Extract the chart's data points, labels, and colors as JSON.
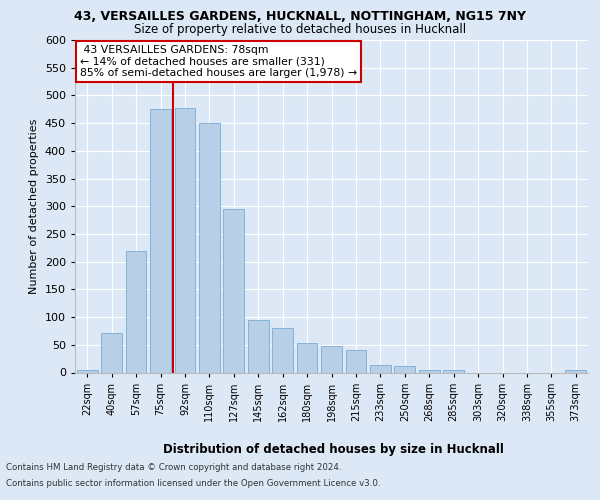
{
  "title1": "43, VERSAILLES GARDENS, HUCKNALL, NOTTINGHAM, NG15 7NY",
  "title2": "Size of property relative to detached houses in Hucknall",
  "xlabel": "Distribution of detached houses by size in Hucknall",
  "ylabel": "Number of detached properties",
  "categories": [
    "22sqm",
    "40sqm",
    "57sqm",
    "75sqm",
    "92sqm",
    "110sqm",
    "127sqm",
    "145sqm",
    "162sqm",
    "180sqm",
    "198sqm",
    "215sqm",
    "233sqm",
    "250sqm",
    "268sqm",
    "285sqm",
    "303sqm",
    "320sqm",
    "338sqm",
    "355sqm",
    "373sqm"
  ],
  "values": [
    5,
    72,
    220,
    475,
    478,
    450,
    295,
    95,
    80,
    53,
    47,
    41,
    13,
    11,
    5,
    5,
    0,
    0,
    0,
    0,
    5
  ],
  "bar_color": "#b8cfe8",
  "bar_edge_color": "#7aacd4",
  "property_label": "43 VERSAILLES GARDENS: 78sqm",
  "smaller_pct": "14%",
  "smaller_count": 331,
  "larger_pct": "85%",
  "larger_count": "1,978",
  "annotation_box_color": "#ffffff",
  "annotation_box_edge": "#cc0000",
  "vline_color": "#cc0000",
  "vline_x_index": 3.5,
  "ylim": [
    0,
    600
  ],
  "yticks": [
    0,
    50,
    100,
    150,
    200,
    250,
    300,
    350,
    400,
    450,
    500,
    550,
    600
  ],
  "footnote1": "Contains HM Land Registry data © Crown copyright and database right 2024.",
  "footnote2": "Contains public sector information licensed under the Open Government Licence v3.0.",
  "bg_color": "#dce8f5",
  "plot_bg_color": "#dce8f5"
}
